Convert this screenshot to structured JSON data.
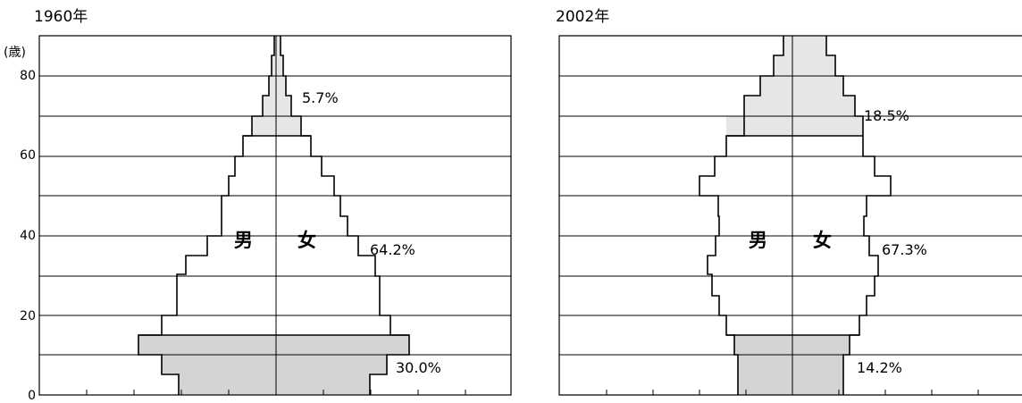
{
  "chart_data": [
    {
      "type": "population-pyramid",
      "title": "1960年",
      "y_unit": "(歳)",
      "y_ticks": [
        "0",
        "20",
        "40",
        "60",
        "80"
      ],
      "ylim": [
        0,
        90
      ],
      "male_label": "男",
      "female_label": "女",
      "age_bands_5yr": [
        "0-4",
        "5-9",
        "10-14",
        "15-19",
        "20-24",
        "25-29",
        "30-34",
        "35-39",
        "40-44",
        "45-49",
        "50-54",
        "55-59",
        "60-64",
        "65-69",
        "70-74",
        "75-79",
        "80-84",
        "85-89"
      ],
      "male_relative_width": [
        0.2,
        0.24,
        0.28,
        0.23,
        0.23,
        0.2,
        0.2,
        0.14,
        0.14,
        0.11,
        0.11,
        0.1,
        0.08,
        0.05,
        0.05,
        0.03,
        0.02,
        0.01
      ],
      "female_relative_width": [
        0.18,
        0.22,
        0.27,
        0.23,
        0.23,
        0.2,
        0.2,
        0.16,
        0.15,
        0.13,
        0.12,
        0.09,
        0.08,
        0.05,
        0.04,
        0.03,
        0.02,
        0.01
      ],
      "groups": [
        {
          "name": "0-14",
          "share": "30.0%"
        },
        {
          "name": "15-64",
          "share": "64.2%"
        },
        {
          "name": "65+",
          "share": "5.7%"
        }
      ]
    },
    {
      "type": "population-pyramid",
      "title": "2002年",
      "y_unit": "",
      "y_ticks": [],
      "ylim": [
        0,
        90
      ],
      "male_label": "男",
      "female_label": "女",
      "age_bands_5yr": [
        "0-4",
        "5-9",
        "10-14",
        "15-19",
        "20-24",
        "25-29",
        "30-34",
        "35-39",
        "40-44",
        "45-49",
        "50-54",
        "55-59",
        "60-64",
        "65-69",
        "70-74",
        "75-79",
        "80-84",
        "85-89"
      ],
      "male_relative_width": [
        0.11,
        0.11,
        0.12,
        0.13,
        0.15,
        0.17,
        0.17,
        0.16,
        0.15,
        0.15,
        0.19,
        0.15,
        0.14,
        0.14,
        0.1,
        0.07,
        0.04,
        0.02
      ],
      "female_relative_width": [
        0.1,
        0.1,
        0.11,
        0.13,
        0.14,
        0.16,
        0.16,
        0.15,
        0.15,
        0.14,
        0.18,
        0.15,
        0.14,
        0.14,
        0.11,
        0.09,
        0.06,
        0.05
      ],
      "groups": [
        {
          "name": "0-14",
          "share": "14.2%"
        },
        {
          "name": "15-64",
          "share": "67.3%"
        },
        {
          "name": "65+",
          "share": "18.5%"
        }
      ]
    }
  ]
}
